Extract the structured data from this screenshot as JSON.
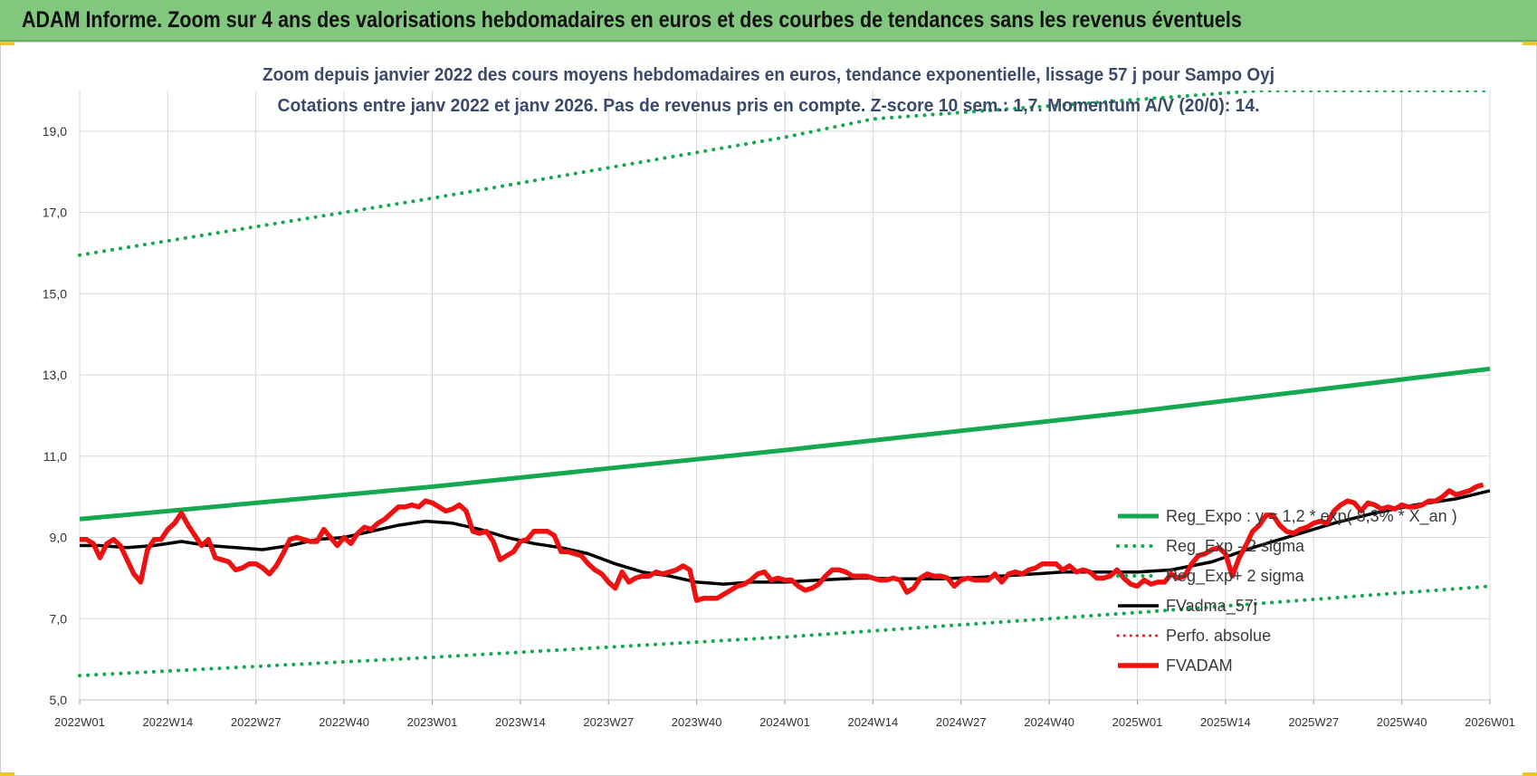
{
  "header": {
    "title": "ADAM Informe. Zoom sur 4 ans des valorisations hebdomadaires en euros et des courbes de tendances sans les revenus éventuels"
  },
  "colors": {
    "header_bg": "#82c77e",
    "reg_green": "#14a850",
    "sigma_green": "#14a850",
    "smooth_black": "#000000",
    "price_red": "#ee1111",
    "perf_red": "#dd2222"
  },
  "chart_data": {
    "type": "line",
    "title": "Zoom depuis janvier 2022 des cours moyens hebdomadaires en euros, tendance exponentielle, lissage 57 j pour Sampo Oyj",
    "subtitle": "Cotations entre janv 2022 et janv 2026. Pas de revenus pris en compte. Z-score 10 sem.: 1,7. Momentum A/V (20/0): 14.",
    "xlabel": "",
    "ylabel": "",
    "ylim": [
      5,
      20
    ],
    "y_ticks": [
      "5,0",
      "7,0",
      "9,0",
      "11,0",
      "13,0",
      "15,0",
      "17,0",
      "19,0"
    ],
    "x_ticks": [
      "2022W01",
      "2022W14",
      "2022W27",
      "2022W40",
      "2023W01",
      "2023W14",
      "2023W27",
      "2023W40",
      "2024W01",
      "2024W14",
      "2024W27",
      "2024W40",
      "2025W01",
      "2025W14",
      "2025W27",
      "2025W40",
      "2026W01"
    ],
    "grid": true,
    "legend_position": "bottom-right inside",
    "series": [
      {
        "name": "Reg_Expo : y = 1,2 * exp( 8,3% * X_an )",
        "style": "solid-green",
        "points": [
          [
            "2022W01",
            9.45
          ],
          [
            "2023W01",
            10.25
          ],
          [
            "2024W01",
            11.15
          ],
          [
            "2025W01",
            12.1
          ],
          [
            "2026W01",
            13.15
          ]
        ]
      },
      {
        "name": "Reg_Exp - 2 sigma",
        "style": "dotted-green",
        "points": [
          [
            "2022W01",
            5.6
          ],
          [
            "2023W01",
            6.05
          ],
          [
            "2024W01",
            6.55
          ],
          [
            "2025W01",
            7.15
          ],
          [
            "2026W01",
            7.8
          ]
        ]
      },
      {
        "name": "Reg_Exp+ 2 sigma",
        "style": "dotted-green",
        "points": [
          [
            "2022W01",
            15.95
          ],
          [
            "2023W01",
            17.35
          ],
          [
            "2024W01",
            18.85
          ],
          [
            "2024W14",
            19.3
          ],
          [
            "2025W19",
            20.0
          ],
          [
            "2026W01",
            20.0
          ]
        ]
      },
      {
        "name": "FVadma_57j",
        "style": "solid-black",
        "points": [
          [
            "2022W01",
            8.8
          ],
          [
            "2022W04",
            8.8
          ],
          [
            "2022W08",
            8.75
          ],
          [
            "2022W12",
            8.8
          ],
          [
            "2022W16",
            8.9
          ],
          [
            "2022W20",
            8.8
          ],
          [
            "2022W24",
            8.75
          ],
          [
            "2022W28",
            8.7
          ],
          [
            "2022W32",
            8.8
          ],
          [
            "2022W36",
            8.95
          ],
          [
            "2022W40",
            9.0
          ],
          [
            "2022W44",
            9.15
          ],
          [
            "2022W48",
            9.3
          ],
          [
            "2022W52",
            9.4
          ],
          [
            "2023W04",
            9.35
          ],
          [
            "2023W08",
            9.2
          ],
          [
            "2023W12",
            9.0
          ],
          [
            "2023W16",
            8.85
          ],
          [
            "2023W20",
            8.75
          ],
          [
            "2023W24",
            8.6
          ],
          [
            "2023W28",
            8.35
          ],
          [
            "2023W32",
            8.15
          ],
          [
            "2023W36",
            8.05
          ],
          [
            "2023W40",
            7.9
          ],
          [
            "2023W44",
            7.85
          ],
          [
            "2023W48",
            7.9
          ],
          [
            "2024W01",
            7.9
          ],
          [
            "2024W06",
            7.95
          ],
          [
            "2024W12",
            8.0
          ],
          [
            "2024W18",
            7.98
          ],
          [
            "2024W24",
            7.98
          ],
          [
            "2024W30",
            8.02
          ],
          [
            "2024W36",
            8.08
          ],
          [
            "2024W42",
            8.15
          ],
          [
            "2024W48",
            8.15
          ],
          [
            "2025W01",
            8.15
          ],
          [
            "2025W06",
            8.2
          ],
          [
            "2025W12",
            8.4
          ],
          [
            "2025W18",
            8.75
          ],
          [
            "2025W24",
            9.05
          ],
          [
            "2025W30",
            9.35
          ],
          [
            "2025W36",
            9.6
          ],
          [
            "2025W42",
            9.8
          ],
          [
            "2025W48",
            9.95
          ],
          [
            "2026W01",
            10.15
          ]
        ]
      },
      {
        "name": "Perfo. absolue",
        "style": "dotted-red",
        "points": []
      },
      {
        "name": "FVADAM",
        "style": "solid-red-thick",
        "points": [
          [
            "2022W01",
            8.95
          ],
          [
            "2022W02",
            8.95
          ],
          [
            "2022W03",
            8.85
          ],
          [
            "2022W04",
            8.5
          ],
          [
            "2022W05",
            8.85
          ],
          [
            "2022W06",
            8.95
          ],
          [
            "2022W07",
            8.8
          ],
          [
            "2022W08",
            8.45
          ],
          [
            "2022W09",
            8.1
          ],
          [
            "2022W10",
            7.9
          ],
          [
            "2022W11",
            8.7
          ],
          [
            "2022W12",
            8.95
          ],
          [
            "2022W13",
            8.95
          ],
          [
            "2022W14",
            9.2
          ],
          [
            "2022W15",
            9.35
          ],
          [
            "2022W16",
            9.6
          ],
          [
            "2022W17",
            9.3
          ],
          [
            "2022W18",
            9.05
          ],
          [
            "2022W19",
            8.8
          ],
          [
            "2022W20",
            8.95
          ],
          [
            "2022W21",
            8.5
          ],
          [
            "2022W22",
            8.45
          ],
          [
            "2022W23",
            8.4
          ],
          [
            "2022W24",
            8.2
          ],
          [
            "2022W25",
            8.25
          ],
          [
            "2022W26",
            8.35
          ],
          [
            "2022W27",
            8.35
          ],
          [
            "2022W28",
            8.25
          ],
          [
            "2022W29",
            8.1
          ],
          [
            "2022W30",
            8.3
          ],
          [
            "2022W31",
            8.6
          ],
          [
            "2022W32",
            8.95
          ],
          [
            "2022W33",
            9.0
          ],
          [
            "2022W34",
            8.95
          ],
          [
            "2022W35",
            8.9
          ],
          [
            "2022W36",
            8.9
          ],
          [
            "2022W37",
            9.2
          ],
          [
            "2022W38",
            9.0
          ],
          [
            "2022W39",
            8.8
          ],
          [
            "2022W40",
            9.0
          ],
          [
            "2022W41",
            8.85
          ],
          [
            "2022W42",
            9.1
          ],
          [
            "2022W43",
            9.25
          ],
          [
            "2022W44",
            9.2
          ],
          [
            "2022W45",
            9.35
          ],
          [
            "2022W46",
            9.45
          ],
          [
            "2022W47",
            9.6
          ],
          [
            "2022W48",
            9.75
          ],
          [
            "2022W49",
            9.75
          ],
          [
            "2022W50",
            9.8
          ],
          [
            "2022W51",
            9.75
          ],
          [
            "2022W52",
            9.9
          ],
          [
            "2023W01",
            9.85
          ],
          [
            "2023W02",
            9.75
          ],
          [
            "2023W03",
            9.65
          ],
          [
            "2023W04",
            9.7
          ],
          [
            "2023W05",
            9.8
          ],
          [
            "2023W06",
            9.65
          ],
          [
            "2023W07",
            9.15
          ],
          [
            "2023W08",
            9.1
          ],
          [
            "2023W09",
            9.15
          ],
          [
            "2023W10",
            8.9
          ],
          [
            "2023W11",
            8.45
          ],
          [
            "2023W12",
            8.55
          ],
          [
            "2023W13",
            8.65
          ],
          [
            "2023W14",
            8.9
          ],
          [
            "2023W15",
            8.95
          ],
          [
            "2023W16",
            9.15
          ],
          [
            "2023W17",
            9.15
          ],
          [
            "2023W18",
            9.15
          ],
          [
            "2023W19",
            9.05
          ],
          [
            "2023W20",
            8.65
          ],
          [
            "2023W21",
            8.65
          ],
          [
            "2023W22",
            8.6
          ],
          [
            "2023W23",
            8.55
          ],
          [
            "2023W24",
            8.35
          ],
          [
            "2023W25",
            8.2
          ],
          [
            "2023W26",
            8.1
          ],
          [
            "2023W27",
            7.9
          ],
          [
            "2023W28",
            7.75
          ],
          [
            "2023W29",
            8.15
          ],
          [
            "2023W30",
            7.9
          ],
          [
            "2023W31",
            8.0
          ],
          [
            "2023W32",
            8.05
          ],
          [
            "2023W33",
            8.05
          ],
          [
            "2023W34",
            8.15
          ],
          [
            "2023W35",
            8.1
          ],
          [
            "2023W36",
            8.15
          ],
          [
            "2023W37",
            8.2
          ],
          [
            "2023W38",
            8.3
          ],
          [
            "2023W39",
            8.2
          ],
          [
            "2023W40",
            7.45
          ],
          [
            "2023W41",
            7.5
          ],
          [
            "2023W42",
            7.5
          ],
          [
            "2023W43",
            7.5
          ],
          [
            "2023W44",
            7.6
          ],
          [
            "2023W45",
            7.7
          ],
          [
            "2023W46",
            7.8
          ],
          [
            "2023W47",
            7.85
          ],
          [
            "2023W48",
            7.95
          ],
          [
            "2023W49",
            8.1
          ],
          [
            "2023W50",
            8.15
          ],
          [
            "2023W51",
            7.95
          ],
          [
            "2023W52",
            8.0
          ],
          [
            "2024W01",
            7.95
          ],
          [
            "2024W02",
            7.95
          ],
          [
            "2024W03",
            7.8
          ],
          [
            "2024W04",
            7.7
          ],
          [
            "2024W05",
            7.75
          ],
          [
            "2024W06",
            7.85
          ],
          [
            "2024W07",
            8.05
          ],
          [
            "2024W08",
            8.2
          ],
          [
            "2024W09",
            8.2
          ],
          [
            "2024W10",
            8.15
          ],
          [
            "2024W11",
            8.05
          ],
          [
            "2024W12",
            8.05
          ],
          [
            "2024W13",
            8.05
          ],
          [
            "2024W14",
            8.0
          ],
          [
            "2024W15",
            7.95
          ],
          [
            "2024W16",
            7.95
          ],
          [
            "2024W17",
            8.0
          ],
          [
            "2024W18",
            7.95
          ],
          [
            "2024W19",
            7.65
          ],
          [
            "2024W20",
            7.75
          ],
          [
            "2024W21",
            8.0
          ],
          [
            "2024W22",
            8.1
          ],
          [
            "2024W23",
            8.05
          ],
          [
            "2024W24",
            8.05
          ],
          [
            "2024W25",
            8.0
          ],
          [
            "2024W26",
            7.8
          ],
          [
            "2024W27",
            7.95
          ],
          [
            "2024W28",
            8.0
          ],
          [
            "2024W29",
            7.95
          ],
          [
            "2024W30",
            7.95
          ],
          [
            "2024W31",
            7.95
          ],
          [
            "2024W32",
            8.1
          ],
          [
            "2024W33",
            7.9
          ],
          [
            "2024W34",
            8.1
          ],
          [
            "2024W35",
            8.15
          ],
          [
            "2024W36",
            8.1
          ],
          [
            "2024W37",
            8.2
          ],
          [
            "2024W38",
            8.25
          ],
          [
            "2024W39",
            8.35
          ],
          [
            "2024W40",
            8.35
          ],
          [
            "2024W41",
            8.35
          ],
          [
            "2024W42",
            8.2
          ],
          [
            "2024W43",
            8.3
          ],
          [
            "2024W44",
            8.15
          ],
          [
            "2024W45",
            8.2
          ],
          [
            "2024W46",
            8.15
          ],
          [
            "2024W47",
            8.0
          ],
          [
            "2024W48",
            8.0
          ],
          [
            "2024W49",
            8.05
          ],
          [
            "2024W50",
            8.2
          ],
          [
            "2024W51",
            8.0
          ],
          [
            "2024W52",
            7.85
          ],
          [
            "2025W01",
            7.8
          ],
          [
            "2025W02",
            7.95
          ],
          [
            "2025W03",
            7.85
          ],
          [
            "2025W04",
            7.9
          ],
          [
            "2025W05",
            7.9
          ],
          [
            "2025W06",
            8.1
          ],
          [
            "2025W07",
            8.0
          ],
          [
            "2025W08",
            8.05
          ],
          [
            "2025W09",
            8.35
          ],
          [
            "2025W10",
            8.55
          ],
          [
            "2025W11",
            8.6
          ],
          [
            "2025W12",
            8.7
          ],
          [
            "2025W13",
            8.75
          ],
          [
            "2025W14",
            8.6
          ],
          [
            "2025W15",
            8.05
          ],
          [
            "2025W16",
            8.5
          ],
          [
            "2025W17",
            8.8
          ],
          [
            "2025W18",
            9.15
          ],
          [
            "2025W19",
            9.3
          ],
          [
            "2025W20",
            9.55
          ],
          [
            "2025W21",
            9.55
          ],
          [
            "2025W22",
            9.3
          ],
          [
            "2025W23",
            9.15
          ],
          [
            "2025W24",
            9.1
          ],
          [
            "2025W25",
            9.2
          ],
          [
            "2025W26",
            9.25
          ],
          [
            "2025W27",
            9.35
          ],
          [
            "2025W28",
            9.4
          ],
          [
            "2025W29",
            9.35
          ],
          [
            "2025W30",
            9.65
          ],
          [
            "2025W31",
            9.8
          ],
          [
            "2025W32",
            9.9
          ],
          [
            "2025W33",
            9.85
          ],
          [
            "2025W34",
            9.65
          ],
          [
            "2025W35",
            9.85
          ],
          [
            "2025W36",
            9.8
          ],
          [
            "2025W37",
            9.7
          ],
          [
            "2025W38",
            9.75
          ],
          [
            "2025W39",
            9.7
          ],
          [
            "2025W40",
            9.8
          ],
          [
            "2025W41",
            9.75
          ],
          [
            "2025W42",
            9.75
          ],
          [
            "2025W43",
            9.8
          ],
          [
            "2025W44",
            9.9
          ],
          [
            "2025W45",
            9.9
          ],
          [
            "2025W46",
            10.0
          ],
          [
            "2025W47",
            10.15
          ],
          [
            "2025W48",
            10.05
          ],
          [
            "2025W49",
            10.1
          ],
          [
            "2025W50",
            10.15
          ],
          [
            "2025W51",
            10.25
          ],
          [
            "2025W52",
            10.3
          ]
        ]
      }
    ]
  }
}
